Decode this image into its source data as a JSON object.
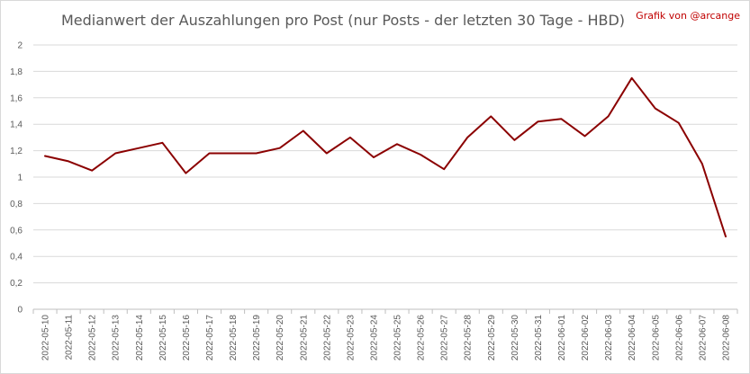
{
  "chart_data": {
    "type": "line",
    "title": "Medianwert der Auszahlungen pro Post (nur Posts - der letzten 30 Tage - HBD)",
    "credit": "Grafik von @arcange",
    "xlabel": "",
    "ylabel": "",
    "ylim": [
      0,
      2
    ],
    "yticks": [
      "0",
      "0,2",
      "0,4",
      "0,6",
      "0,8",
      "1",
      "1,2",
      "1,4",
      "1,6",
      "1,8",
      "2"
    ],
    "grid": true,
    "legend": "none",
    "line_color": "#8b0000",
    "x": [
      "2022-05-10",
      "2022-05-11",
      "2022-05-12",
      "2022-05-13",
      "2022-05-14",
      "2022-05-15",
      "2022-05-16",
      "2022-05-17",
      "2022-05-18",
      "2022-05-19",
      "2022-05-20",
      "2022-05-21",
      "2022-05-22",
      "2022-05-23",
      "2022-05-24",
      "2022-05-25",
      "2022-05-26",
      "2022-05-27",
      "2022-05-28",
      "2022-05-29",
      "2022-05-30",
      "2022-05-31",
      "2022-06-01",
      "2022-06-02",
      "2022-06-03",
      "2022-06-04",
      "2022-06-05",
      "2022-06-06",
      "2022-06-07",
      "2022-06-08"
    ],
    "values": [
      1.16,
      1.12,
      1.05,
      1.18,
      1.22,
      1.26,
      1.03,
      1.18,
      1.18,
      1.18,
      1.22,
      1.35,
      1.18,
      1.3,
      1.15,
      1.25,
      1.17,
      1.06,
      1.3,
      1.46,
      1.28,
      1.42,
      1.44,
      1.31,
      1.46,
      1.75,
      1.52,
      1.41,
      1.1,
      0.55
    ]
  }
}
